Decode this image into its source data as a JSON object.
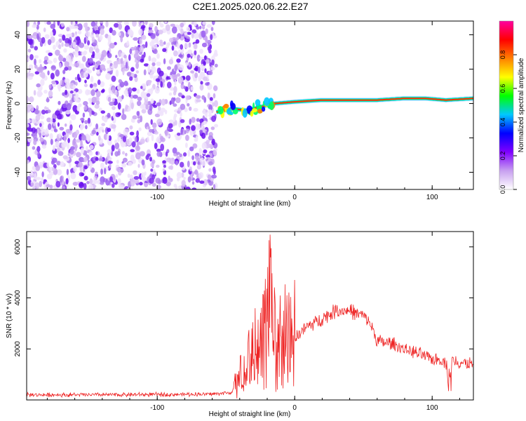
{
  "figure": {
    "title": "C2E1.2025.020.06.22.E27"
  },
  "chart_data": [
    {
      "type": "heatmap",
      "panel": "spectrogram",
      "xlabel": "Height of straight line (km)",
      "ylabel": "Frequency (Hz)",
      "xlim": [
        -195,
        130
      ],
      "ylim": [
        -50,
        48
      ],
      "x_ticks": [
        -100,
        0,
        100
      ],
      "x_tick_labels": [
        "-100",
        "0",
        "100"
      ],
      "y_ticks": [
        -40,
        -20,
        0,
        20,
        40
      ],
      "y_tick_labels": [
        "-40",
        "-20",
        "0",
        "20",
        "40"
      ],
      "noise_region_x": [
        -195,
        -57
      ],
      "signal_region_x": [
        -57,
        130
      ],
      "ridge": {
        "x": [
          -57,
          -45,
          -35,
          -25,
          -15,
          0,
          20,
          40,
          60,
          80,
          95,
          110,
          130
        ],
        "freq": [
          -5,
          -3,
          -4,
          -2,
          0,
          1,
          2,
          2,
          2,
          3,
          3,
          2,
          3
        ]
      },
      "colorbar": {
        "label": "Normalized spectral amplitude",
        "range": [
          0,
          1
        ],
        "ticks": [
          0.0,
          0.2,
          0.4,
          0.6,
          0.8
        ],
        "tick_labels": [
          "0.0",
          "0.2",
          "0.4",
          "0.6",
          "0.8"
        ],
        "colors": [
          "#ffffff",
          "#c8a0f0",
          "#8000ff",
          "#0000ff",
          "#00c8ff",
          "#00ff00",
          "#ffff00",
          "#ff8000",
          "#ff0000",
          "#ff00a0"
        ]
      }
    },
    {
      "type": "line",
      "panel": "snr",
      "xlabel": "Height of straight line (km)",
      "ylabel": "SNR (10 * v/v)",
      "xlim": [
        -195,
        130
      ],
      "ylim": [
        0,
        6600
      ],
      "x_ticks": [
        -100,
        0,
        100
      ],
      "x_tick_labels": [
        "-100",
        "0",
        "100"
      ],
      "y_ticks": [
        2000,
        4000,
        6000
      ],
      "y_tick_labels": [
        "2000",
        "4000",
        "6000"
      ],
      "series": [
        {
          "color": "#ee2222",
          "x": [
            -195,
            -150,
            -100,
            -60,
            -45,
            -40,
            -35,
            -30,
            -25,
            -20,
            -17,
            -15,
            -10,
            -5,
            0,
            5,
            10,
            20,
            30,
            40,
            50,
            55,
            60,
            70,
            80,
            90,
            100,
            105,
            110,
            113,
            115,
            120,
            125,
            130
          ],
          "values": [
            200,
            200,
            210,
            230,
            300,
            900,
            1400,
            1900,
            2100,
            2500,
            3800,
            2400,
            2200,
            2300,
            2400,
            2700,
            2900,
            3200,
            3500,
            3500,
            3300,
            3000,
            2300,
            2200,
            2000,
            1800,
            1600,
            1600,
            1500,
            1000,
            1600,
            1500,
            1400,
            1400
          ]
        }
      ]
    }
  ]
}
